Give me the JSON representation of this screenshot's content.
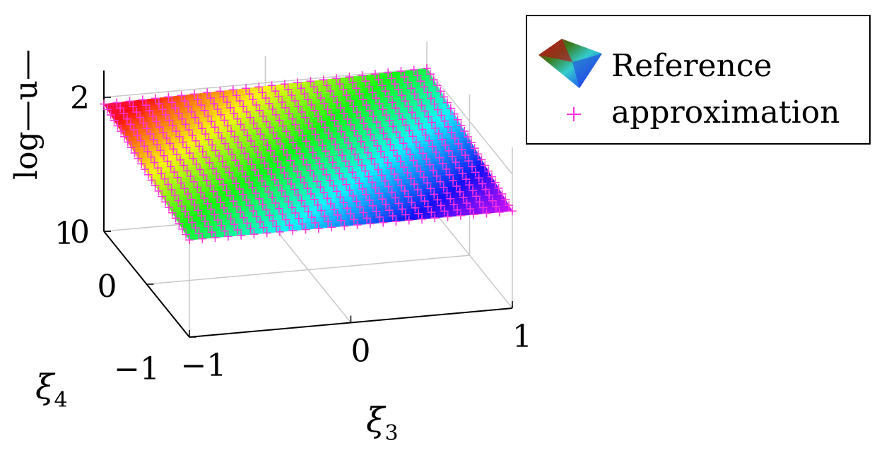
{
  "chart_data": {
    "type": "surface3d",
    "xlabel_symbol": "ξ",
    "xlabel_subscript": "3",
    "ylabel_symbol": "ξ",
    "ylabel_subscript": "4",
    "zlabel": "log—u—",
    "xlim": [
      -1,
      1
    ],
    "ylim": [
      -1,
      1
    ],
    "zlim": [
      0,
      2.4
    ],
    "xticks": [
      "−1",
      "0",
      "1"
    ],
    "yticks": [
      "−1",
      "0",
      "1"
    ],
    "zticks": [
      "0",
      "2"
    ],
    "grid": true,
    "legend_position": "top-right",
    "series": [
      {
        "name": "Reference",
        "kind": "surface",
        "colormap": "hsv",
        "z_corners": {
          "x-1_y-1": 1.45,
          "x1_y-1": 1.45,
          "x-1_y1": 1.9,
          "x1_y1": 2.0
        }
      },
      {
        "name": "approximation",
        "kind": "markers",
        "marker": "+",
        "color": "#ff33dd",
        "grid_points_per_axis": 26
      }
    ]
  }
}
